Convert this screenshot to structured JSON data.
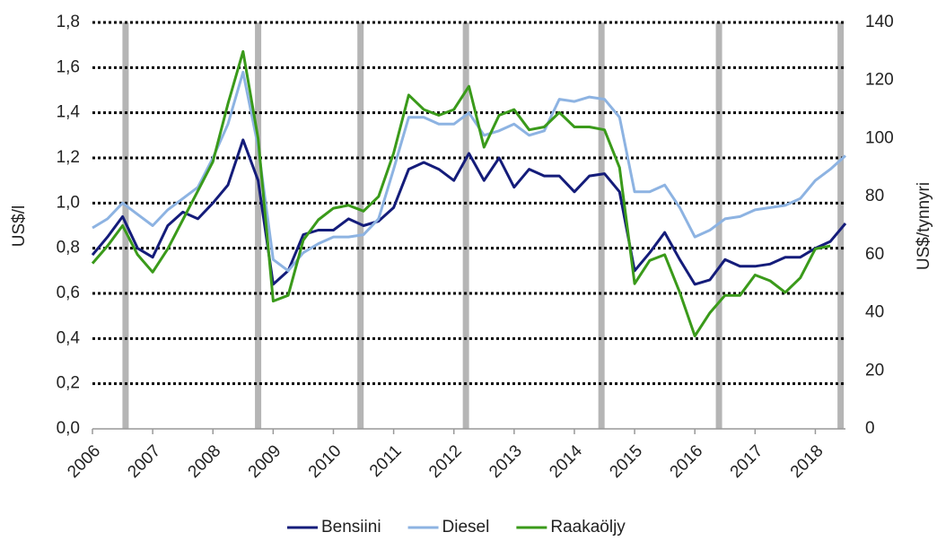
{
  "chart_data": {
    "type": "line",
    "y_label": "US$/l",
    "y2_label": "US$/tynnyri",
    "x": [
      2006.0,
      2006.25,
      2006.5,
      2006.75,
      2007.0,
      2007.25,
      2007.5,
      2007.75,
      2008.0,
      2008.25,
      2008.5,
      2008.75,
      2009.0,
      2009.25,
      2009.5,
      2009.75,
      2010.0,
      2010.25,
      2010.5,
      2010.75,
      2011.0,
      2011.25,
      2011.5,
      2011.75,
      2012.0,
      2012.25,
      2012.5,
      2012.75,
      2013.0,
      2013.25,
      2013.5,
      2013.75,
      2014.0,
      2014.25,
      2014.5,
      2014.75,
      2015.0,
      2015.25,
      2015.5,
      2015.75,
      2016.0,
      2016.25,
      2016.5,
      2016.75,
      2017.0,
      2017.25,
      2017.5,
      2017.75,
      2018.0,
      2018.25,
      2018.5
    ],
    "series": [
      {
        "name": "Bensiini",
        "color": "#141c7a",
        "values": [
          0.77,
          0.85,
          0.94,
          0.8,
          0.76,
          0.9,
          0.96,
          0.93,
          1.0,
          1.08,
          1.28,
          1.1,
          0.64,
          0.7,
          0.86,
          0.88,
          0.88,
          0.93,
          0.9,
          0.92,
          0.98,
          1.15,
          1.18,
          1.15,
          1.1,
          1.22,
          1.1,
          1.2,
          1.07,
          1.15,
          1.12,
          1.12,
          1.05,
          1.12,
          1.13,
          1.05,
          0.7,
          0.78,
          0.87,
          0.75,
          0.64,
          0.66,
          0.75,
          0.72,
          0.72,
          0.73,
          0.76,
          0.76,
          0.8,
          0.83,
          0.91
        ]
      },
      {
        "name": "Diesel",
        "color": "#8db3e2",
        "values": [
          0.89,
          0.93,
          1.0,
          0.95,
          0.9,
          0.97,
          1.02,
          1.07,
          1.2,
          1.35,
          1.58,
          1.25,
          0.75,
          0.7,
          0.78,
          0.82,
          0.85,
          0.85,
          0.86,
          0.93,
          1.15,
          1.38,
          1.38,
          1.35,
          1.35,
          1.4,
          1.3,
          1.32,
          1.35,
          1.3,
          1.32,
          1.46,
          1.45,
          1.47,
          1.46,
          1.38,
          1.05,
          1.05,
          1.08,
          0.98,
          0.85,
          0.88,
          0.93,
          0.94,
          0.97,
          0.98,
          0.99,
          1.02,
          1.1,
          1.15,
          1.21
        ]
      },
      {
        "name": "Raakaöljy",
        "color": "#3a9a1a",
        "axis": "y2",
        "values": [
          57,
          63,
          70,
          60,
          54,
          62,
          72,
          82,
          92,
          112,
          130,
          100,
          44,
          46,
          65,
          72,
          76,
          77,
          75,
          80,
          95,
          115,
          110,
          108,
          110,
          118,
          97,
          108,
          110,
          103,
          104,
          109,
          104,
          104,
          103,
          90,
          50,
          58,
          60,
          47,
          32,
          40,
          46,
          46,
          53,
          51,
          47,
          52,
          62,
          63,
          null
        ]
      }
    ],
    "markers_x": [
      2006.55,
      2008.75,
      2010.45,
      2012.2,
      2014.45,
      2016.4,
      2018.42
    ],
    "xlim": [
      2006,
      2018.5
    ],
    "xticks": [
      2006,
      2007,
      2008,
      2009,
      2010,
      2011,
      2012,
      2013,
      2014,
      2015,
      2016,
      2017,
      2018
    ],
    "ylim": [
      0,
      1.8
    ],
    "yticks": [
      {
        "value": 0,
        "label": "0,0"
      },
      {
        "value": 0.2,
        "label": "0,2"
      },
      {
        "value": 0.4,
        "label": "0,4"
      },
      {
        "value": 0.6,
        "label": "0,6"
      },
      {
        "value": 0.8,
        "label": "0,8"
      },
      {
        "value": 1.0,
        "label": "1,0"
      },
      {
        "value": 1.2,
        "label": "1,2"
      },
      {
        "value": 1.4,
        "label": "1,4"
      },
      {
        "value": 1.6,
        "label": "1,6"
      },
      {
        "value": 1.8,
        "label": "1,8"
      }
    ],
    "y2lim": [
      0,
      140
    ],
    "y2ticks": [
      0,
      20,
      40,
      60,
      80,
      100,
      120,
      140
    ],
    "grid": true,
    "legend": "bottom"
  }
}
